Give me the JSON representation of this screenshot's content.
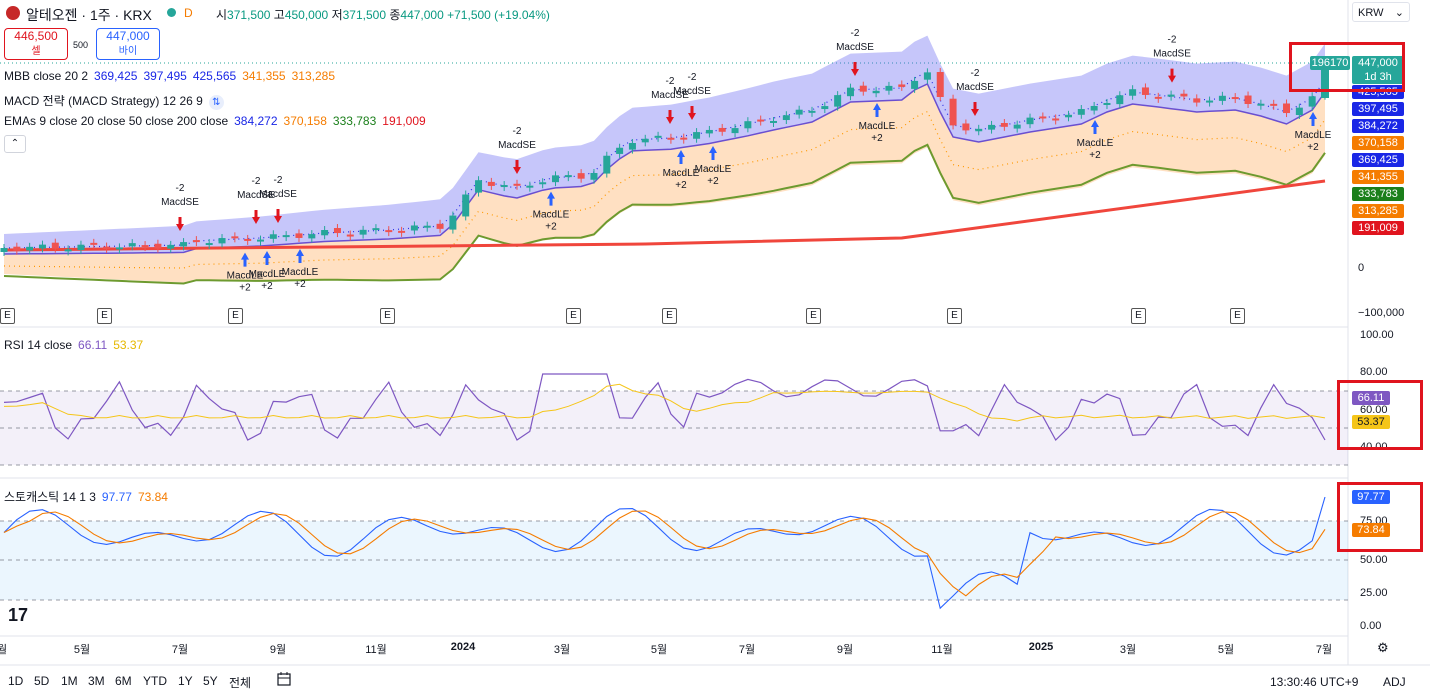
{
  "header": {
    "symbol_title": "알테오젠 · 1주 · KRX",
    "badge_d": "D",
    "ohlc": {
      "open_label": "시",
      "open": "371,500",
      "high_label": "고",
      "high": "450,000",
      "low_label": "저",
      "low": "371,500",
      "close_label": "종",
      "close": "447,000",
      "change": "+71,500 (+19.04%)"
    },
    "sell": {
      "price": "446,500",
      "label": "셀"
    },
    "spread": "500",
    "buy": {
      "price": "447,000",
      "label": "바이"
    },
    "currency": "KRW"
  },
  "indicators": {
    "mbb": {
      "name": "MBB close 20 2",
      "v1": "369,425",
      "v2": "397,495",
      "v3": "425,565",
      "v4": "341,355",
      "v5": "313,285"
    },
    "macd": {
      "name": "MACD 전략 (MACD Strategy) 12 26 9"
    },
    "emas": {
      "name": "EMAs 9 close 20 close 50 close 200 close",
      "v1": "384,272",
      "v2": "370,158",
      "v3": "333,783",
      "v4": "191,009"
    },
    "rsi": {
      "name": "RSI 14 close",
      "v1": "66.11",
      "v2": "53.37"
    },
    "stoch": {
      "name": "스토캐스틱 14 1 3",
      "v1": "97.77",
      "v2": "73.84"
    }
  },
  "price_axis": {
    "labels": [
      "0",
      "−100,000"
    ],
    "current_volume": "196170",
    "current_price": "447,000",
    "countdown": "1d 3h",
    "tags": [
      {
        "text": "425,565",
        "color": "#1a27e6"
      },
      {
        "text": "397,495",
        "color": "#1a27e6"
      },
      {
        "text": "384,272",
        "color": "#1a27e6"
      },
      {
        "text": "370,158",
        "color": "#f57c00"
      },
      {
        "text": "369,425",
        "color": "#1a27e6"
      },
      {
        "text": "341,355",
        "color": "#f57c00"
      },
      {
        "text": "333,783",
        "color": "#1b7f1b"
      },
      {
        "text": "313,285",
        "color": "#f57c00"
      },
      {
        "text": "191,009",
        "color": "#e0141e"
      }
    ]
  },
  "rsi_axis": {
    "labels": [
      "100.00",
      "80.00",
      "60.00",
      "40.00"
    ],
    "tag1": "66.11",
    "tag2": "53.37"
  },
  "stoch_axis": {
    "labels": [
      "75.00",
      "50.00",
      "25.00",
      "0.00"
    ],
    "tag1": "97.77",
    "tag2": "73.84"
  },
  "signals": {
    "sell_label": "MacdSE",
    "buy_label": "MacdLE",
    "sell_qty": "-2",
    "buy_qty": "+2",
    "buy_partial": "Mac"
  },
  "earnings_marker": "E",
  "x_axis": [
    "월",
    "5월",
    "7월",
    "9월",
    "11월",
    "2024",
    "3월",
    "5월",
    "7월",
    "9월",
    "11월",
    "2025",
    "3월",
    "5월",
    "7월"
  ],
  "timeframes": [
    "1D",
    "5D",
    "1M",
    "3M",
    "6M",
    "YTD",
    "1Y",
    "5Y",
    "전체"
  ],
  "footer": {
    "clock": "13:30:46 UTC+9",
    "adj": "ADJ"
  },
  "colors": {
    "up": "#26a69a",
    "down": "#ef5350",
    "ema9": "#2a2ee6",
    "ema20": "#ff9800",
    "ema50": "#6d9a2f",
    "ema200": "#f0463c",
    "rsi": "#7e57c2",
    "rsi_ma": "#f5c518",
    "stoch_k": "#2962ff",
    "stoch_d": "#f57c00"
  }
}
